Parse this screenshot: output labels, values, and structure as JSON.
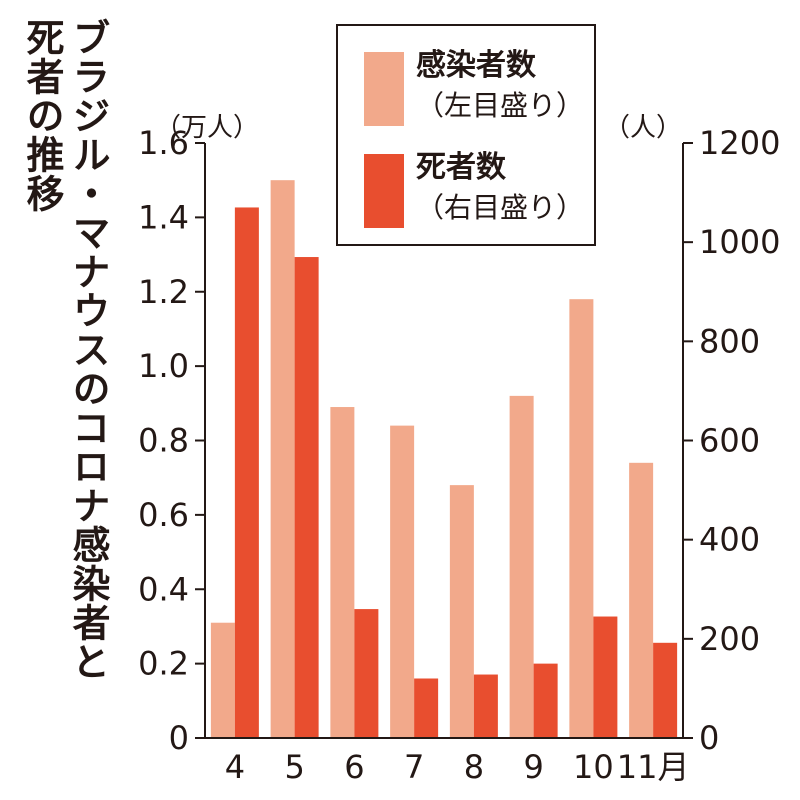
{
  "title": {
    "line1": "ブラジル・マナウスのコロナ感染者と",
    "line2": "死者の推移"
  },
  "legend": {
    "items": [
      {
        "name": "感染者数",
        "axis_note": "（左目盛り）",
        "color": "#f2a98b"
      },
      {
        "name": "死者数",
        "axis_note": "（右目盛り）",
        "color": "#e84e2f"
      }
    ]
  },
  "colors": {
    "axis": "#231815",
    "infections": "#f2a98b",
    "deaths": "#e84e2f"
  },
  "chart_data": {
    "type": "bar",
    "categories": [
      "4",
      "5",
      "6",
      "7",
      "8",
      "9",
      "10",
      "11月"
    ],
    "series": [
      {
        "name": "感染者数",
        "axis": "left",
        "unit": "万人",
        "values": [
          0.31,
          1.5,
          0.89,
          0.84,
          0.68,
          0.92,
          1.18,
          0.74
        ]
      },
      {
        "name": "死者数",
        "axis": "right",
        "unit": "人",
        "values": [
          1070,
          970,
          260,
          120,
          128,
          150,
          245,
          192
        ]
      }
    ],
    "y_left": {
      "label": "（万人）",
      "ylim": [
        0,
        1.6
      ],
      "ticks": [
        "0",
        "0.2",
        "0.4",
        "0.6",
        "0.8",
        "1.0",
        "1.2",
        "1.4",
        "1.6"
      ]
    },
    "y_right": {
      "label": "（人）",
      "ylim": [
        0,
        1200
      ],
      "ticks": [
        "0",
        "200",
        "400",
        "600",
        "800",
        "1000",
        "1200"
      ]
    },
    "grid": false,
    "legend_position": "top-right"
  }
}
